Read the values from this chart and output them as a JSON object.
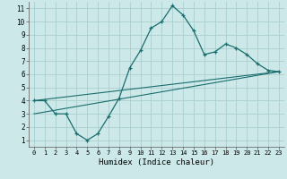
{
  "xlabel": "Humidex (Indice chaleur)",
  "xlim": [
    -0.5,
    23.5
  ],
  "ylim": [
    0.5,
    11.5
  ],
  "xticks": [
    0,
    1,
    2,
    3,
    4,
    5,
    6,
    7,
    8,
    9,
    10,
    11,
    12,
    13,
    14,
    15,
    16,
    17,
    18,
    19,
    20,
    21,
    22,
    23
  ],
  "yticks": [
    1,
    2,
    3,
    4,
    5,
    6,
    7,
    8,
    9,
    10,
    11
  ],
  "bg_color": "#cce8e8",
  "line_color": "#1a6e6e",
  "grid_color": "#aacece",
  "curve1_x": [
    0,
    1,
    2,
    3,
    4,
    5,
    6,
    7,
    8,
    9,
    10,
    11,
    12,
    13,
    14,
    15,
    16,
    17,
    18,
    19,
    20,
    21,
    22,
    23
  ],
  "curve1_y": [
    4.0,
    4.0,
    3.0,
    3.0,
    1.5,
    1.0,
    1.5,
    2.8,
    4.2,
    6.5,
    7.8,
    9.5,
    10.0,
    11.2,
    10.5,
    9.3,
    7.5,
    7.7,
    8.3,
    8.0,
    7.5,
    6.8,
    6.3,
    6.2
  ],
  "line2_x": [
    0,
    23
  ],
  "line2_y": [
    4.0,
    6.2
  ],
  "line3_x": [
    0,
    23
  ],
  "line3_y": [
    3.0,
    6.2
  ]
}
